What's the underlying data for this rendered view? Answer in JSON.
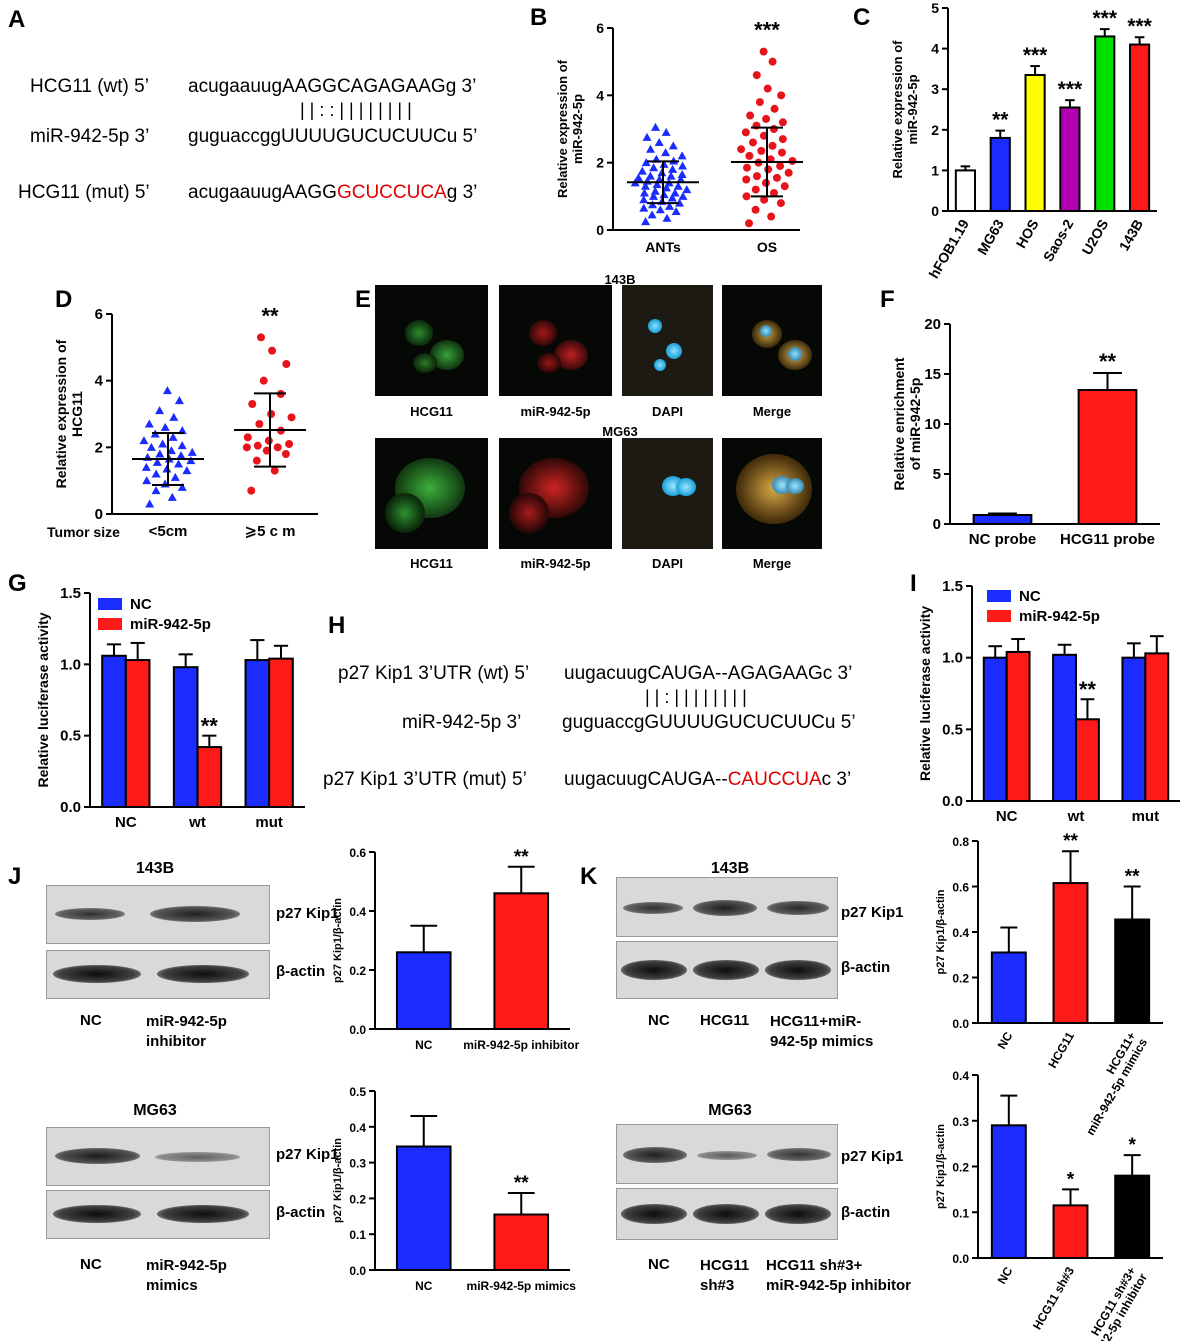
{
  "panels": {
    "A": {
      "label": "A",
      "row1_name": "HCG11 (wt) 5’",
      "row1_lower": "acugaauug",
      "row1_upper": "AAGGCAGAGAAG",
      "row1_end": "g 3’",
      "pairing": "| |  :  :  | | | | | | | |",
      "row2_name": "miR-942-5p 3’",
      "row2_lower": "guguaccgg",
      "row2_upper": "UUUUGUCUCUUC",
      "row2_end": "u 5’",
      "row3_name": "HCG11 (mut) 5’",
      "row3_lower": "acugaauug",
      "row3_upper": "AAGG",
      "row3_red": "GCUCCUCA",
      "row3_end": "g 3’"
    },
    "B": {
      "label": "B"
    },
    "C": {
      "label": "C"
    },
    "D": {
      "label": "D",
      "x_title": "Tumor size"
    },
    "E": {
      "label": "E",
      "top_title": "143B",
      "bottom_title": "MG63",
      "captions": [
        "HCG11",
        "miR-942-5p",
        "DAPI",
        "Merge"
      ]
    },
    "F": {
      "label": "F"
    },
    "G": {
      "label": "G"
    },
    "H": {
      "label": "H",
      "row1_name": "p27 Kip1 3’UTR (wt) 5’",
      "row1_lower": "uugacuug",
      "row1_upper": "CAUGA--AGAGAAG",
      "row1_end": "c  3’",
      "pairing": "| |    :  |      | | | | | | |",
      "row2_name": "miR-942-5p 3’",
      "row2_lower": "guguaccg",
      "row2_upper": "GUUUUGUCUCUUC",
      "row2_end": "u 5’",
      "row3_name": "p27 Kip1 3’UTR (mut) 5’",
      "row3_lower": "uugacuug",
      "row3_upper": "CAUGA--",
      "row3_red": "CAUCCUA",
      "row3_end": "c  3’"
    },
    "I": {
      "label": "I"
    },
    "J": {
      "label": "J",
      "top_cell": "143B",
      "top_lanes": [
        "NC",
        "miR-942-5p\ninhibitor"
      ],
      "bottom_cell": "MG63",
      "bottom_lanes": [
        "NC",
        "miR-942-5p\nmimics"
      ],
      "band_labels": [
        "p27 Kip1",
        "β-actin"
      ]
    },
    "K": {
      "label": "K",
      "top_cell": "143B",
      "top_lanes": [
        "NC",
        "HCG11",
        "HCG11+miR-\n942-5p mimics"
      ],
      "bottom_cell": "MG63",
      "bottom_lanes": [
        "NC",
        "HCG11\nsh#3",
        "HCG11 sh#3+\nmiR-942-5p inhibitor"
      ],
      "band_labels": [
        "p27 Kip1",
        "β-actin"
      ]
    }
  },
  "chart_data": [
    {
      "id": "B",
      "type": "scatter",
      "categories": [
        "ANTs",
        "OS"
      ],
      "ylabel": "Relative expression of\nmiR-942-5p",
      "ylim": [
        0,
        6
      ],
      "yticks": [
        0,
        2,
        4,
        6
      ],
      "series": [
        {
          "values": [
            0.25,
            0.35,
            0.45,
            0.55,
            0.6,
            0.65,
            0.7,
            0.75,
            0.8,
            0.85,
            0.9,
            0.95,
            1.0,
            1.0,
            1.05,
            1.1,
            1.1,
            1.15,
            1.2,
            1.25,
            1.3,
            1.3,
            1.35,
            1.4,
            1.4,
            1.45,
            1.5,
            1.5,
            1.55,
            1.6,
            1.6,
            1.65,
            1.7,
            1.75,
            1.8,
            1.85,
            1.9,
            1.95,
            2.0,
            2.05,
            2.1,
            2.2,
            2.3,
            2.4,
            2.5,
            2.6,
            2.75,
            2.9,
            3.05
          ],
          "mean": 1.42,
          "sd": 0.62,
          "color": "#1a2cff"
        },
        {
          "values": [
            0.2,
            0.4,
            0.6,
            0.8,
            0.9,
            1.0,
            1.1,
            1.2,
            1.3,
            1.4,
            1.5,
            1.55,
            1.6,
            1.7,
            1.8,
            1.85,
            1.9,
            2.0,
            2.05,
            2.1,
            2.2,
            2.3,
            2.35,
            2.4,
            2.5,
            2.6,
            2.7,
            2.8,
            2.9,
            3.0,
            3.1,
            3.2,
            3.3,
            3.4,
            3.6,
            3.8,
            4.0,
            4.2,
            4.6,
            5.0,
            5.3
          ],
          "mean": 2.02,
          "sd": 1.02,
          "color": "#e8141b"
        }
      ],
      "significance": [
        "",
        "***"
      ]
    },
    {
      "id": "C",
      "type": "bar",
      "categories": [
        "hFOB1.19",
        "MG63",
        "HOS",
        "Saos-2",
        "U2OS",
        "143B"
      ],
      "values": [
        1.0,
        1.8,
        3.35,
        2.55,
        4.3,
        4.1
      ],
      "errors": [
        0.1,
        0.18,
        0.22,
        0.18,
        0.18,
        0.18
      ],
      "colors": [
        "#ffffff",
        "#1a2cff",
        "#ffff00",
        "#b000b0",
        "#00e000",
        "#ff1a1a"
      ],
      "significance": [
        "",
        "**",
        "***",
        "***",
        "***",
        "***"
      ],
      "ylabel": "Relative expression of\nmiR-942-5p",
      "ylim": [
        0,
        5
      ],
      "yticks": [
        0,
        1,
        2,
        3,
        4,
        5
      ]
    },
    {
      "id": "D",
      "type": "scatter",
      "categories": [
        "<5cm",
        "⩾5 c m"
      ],
      "ylabel": "Relative expression of\nHCG11",
      "ylim": [
        0,
        6
      ],
      "yticks": [
        0,
        2,
        4,
        6
      ],
      "series": [
        {
          "values": [
            0.3,
            0.5,
            0.7,
            0.8,
            0.9,
            1.0,
            1.1,
            1.2,
            1.3,
            1.35,
            1.4,
            1.5,
            1.55,
            1.6,
            1.65,
            1.7,
            1.75,
            1.8,
            1.85,
            1.9,
            2.0,
            2.05,
            2.1,
            2.2,
            2.3,
            2.4,
            2.5,
            2.6,
            2.7,
            2.9,
            3.1,
            3.4,
            3.7
          ],
          "mean": 1.65,
          "sd": 0.78,
          "color": "#1a2cff"
        },
        {
          "values": [
            0.7,
            1.3,
            1.6,
            1.8,
            1.9,
            2.0,
            2.0,
            2.05,
            2.1,
            2.2,
            2.3,
            2.5,
            2.7,
            2.9,
            3.0,
            3.3,
            3.6,
            4.0,
            4.5,
            4.9,
            5.3
          ],
          "mean": 2.52,
          "sd": 1.1,
          "color": "#e8141b"
        }
      ],
      "significance": [
        "",
        "**"
      ]
    },
    {
      "id": "F",
      "type": "bar",
      "categories": [
        "NC probe",
        "HCG11 probe"
      ],
      "values": [
        0.9,
        13.4
      ],
      "errors": [
        0.15,
        1.7
      ],
      "colors": [
        "#1a2cff",
        "#ff1a1a"
      ],
      "significance": [
        "",
        "**"
      ],
      "ylabel": "Relative enrichment\nof miR-942-5p",
      "ylim": [
        0,
        20
      ],
      "yticks": [
        0,
        5,
        10,
        15,
        20
      ]
    },
    {
      "id": "G",
      "type": "bar",
      "categories": [
        "NC",
        "wt",
        "mut"
      ],
      "legend": [
        "NC",
        "miR-942-5p"
      ],
      "legend_position": "top-left",
      "series": [
        {
          "name": "NC",
          "values": [
            1.06,
            0.98,
            1.03
          ],
          "errors": [
            0.08,
            0.09,
            0.14
          ],
          "color": "#1a2cff"
        },
        {
          "name": "miR-942-5p",
          "values": [
            1.03,
            0.42,
            1.04
          ],
          "errors": [
            0.12,
            0.08,
            0.09
          ],
          "color": "#ff1a1a"
        }
      ],
      "significance": [
        [
          "",
          ""
        ],
        [
          "",
          "**"
        ],
        [
          "",
          ""
        ]
      ],
      "ylabel": "Relative luciferase activity",
      "ylim": [
        0,
        1.5
      ],
      "yticks": [
        0.0,
        0.5,
        1.0,
        1.5
      ]
    },
    {
      "id": "I",
      "type": "bar",
      "categories": [
        "NC",
        "wt",
        "mut"
      ],
      "legend": [
        "NC",
        "miR-942-5p"
      ],
      "legend_position": "top-left",
      "series": [
        {
          "name": "NC",
          "values": [
            1.0,
            1.02,
            1.0
          ],
          "errors": [
            0.08,
            0.07,
            0.1
          ],
          "color": "#1a2cff"
        },
        {
          "name": "miR-942-5p",
          "values": [
            1.04,
            0.57,
            1.03
          ],
          "errors": [
            0.09,
            0.14,
            0.12
          ],
          "color": "#ff1a1a"
        }
      ],
      "significance": [
        [
          "",
          ""
        ],
        [
          "",
          "**"
        ],
        [
          "",
          ""
        ]
      ],
      "ylabel": "Relative luciferase activity",
      "ylim": [
        0,
        1.5
      ],
      "yticks": [
        0.0,
        0.5,
        1.0,
        1.5
      ]
    },
    {
      "id": "J1",
      "type": "bar",
      "categories": [
        "NC",
        "miR-942-5p inhibitor"
      ],
      "values": [
        0.26,
        0.46
      ],
      "errors": [
        0.09,
        0.09
      ],
      "colors": [
        "#1a2cff",
        "#ff1a1a"
      ],
      "significance": [
        "",
        "**"
      ],
      "ylabel": "p27 Kip1/β-actin",
      "ylim": [
        0,
        0.6
      ],
      "yticks": [
        0.0,
        0.2,
        0.4,
        0.6
      ]
    },
    {
      "id": "J2",
      "type": "bar",
      "categories": [
        "NC",
        "miR-942-5p mimics"
      ],
      "values": [
        0.345,
        0.155
      ],
      "errors": [
        0.085,
        0.06
      ],
      "colors": [
        "#1a2cff",
        "#ff1a1a"
      ],
      "significance": [
        "",
        "**"
      ],
      "ylabel": "p27 Kip1/β-actin",
      "ylim": [
        0,
        0.5
      ],
      "yticks": [
        0.0,
        0.1,
        0.2,
        0.3,
        0.4,
        0.5
      ]
    },
    {
      "id": "K1",
      "type": "bar",
      "categories": [
        "NC",
        "HCG11",
        "HCG11+\nmiR-942-5p mimics"
      ],
      "values": [
        0.31,
        0.615,
        0.455
      ],
      "errors": [
        0.11,
        0.14,
        0.145
      ],
      "colors": [
        "#1a2cff",
        "#ff1a1a",
        "#000000"
      ],
      "significance": [
        "",
        "**",
        "**"
      ],
      "ylabel": "p27 Kip1/β-actin",
      "ylim": [
        0,
        0.8
      ],
      "yticks": [
        0.0,
        0.2,
        0.4,
        0.6,
        0.8
      ]
    },
    {
      "id": "K2",
      "type": "bar",
      "categories": [
        "NC",
        "HCG11 sh#3",
        "HCG11 sh#3+\nmiR-942-5p  inhibitor"
      ],
      "values": [
        0.29,
        0.115,
        0.18
      ],
      "errors": [
        0.065,
        0.035,
        0.045
      ],
      "colors": [
        "#1a2cff",
        "#ff1a1a",
        "#000000"
      ],
      "significance": [
        "",
        "*",
        "*"
      ],
      "ylabel": "p27 Kip1/β-actin",
      "ylim": [
        0,
        0.4
      ],
      "yticks": [
        0.0,
        0.1,
        0.2,
        0.3,
        0.4
      ]
    }
  ]
}
